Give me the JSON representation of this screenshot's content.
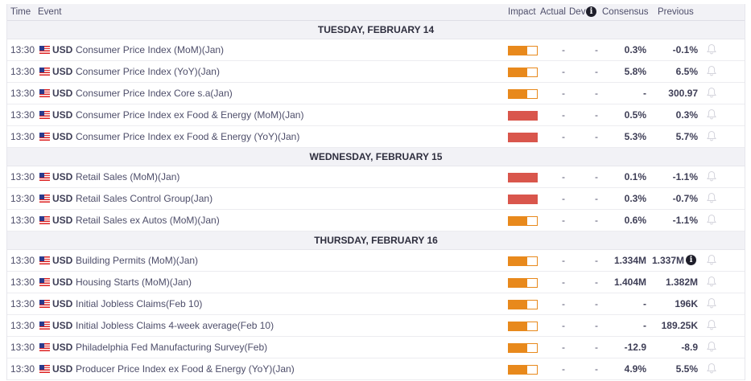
{
  "header": {
    "time": "Time",
    "event": "Event",
    "impact": "Impact",
    "actual": "Actual",
    "dev": "Dev",
    "dev_info_icon": "info-icon",
    "consensus": "Consensus",
    "previous": "Previous"
  },
  "colors": {
    "medium_impact": "#e8891c",
    "high_impact": "#d9564c"
  },
  "groups": [
    {
      "date": "TUESDAY, FEBRUARY 14",
      "rows": [
        {
          "time": "13:30",
          "currency": "USD",
          "event": "Consumer Price Index (MoM)(Jan)",
          "impact": "medium",
          "actual": "-",
          "dev": "-",
          "consensus": "0.3%",
          "previous": "-0.1%"
        },
        {
          "time": "13:30",
          "currency": "USD",
          "event": "Consumer Price Index (YoY)(Jan)",
          "impact": "medium",
          "actual": "-",
          "dev": "-",
          "consensus": "5.8%",
          "previous": "6.5%"
        },
        {
          "time": "13:30",
          "currency": "USD",
          "event": "Consumer Price Index Core s.a(Jan)",
          "impact": "medium",
          "actual": "-",
          "dev": "-",
          "consensus": "-",
          "previous": "300.97"
        },
        {
          "time": "13:30",
          "currency": "USD",
          "event": "Consumer Price Index ex Food & Energy (MoM)(Jan)",
          "impact": "high",
          "actual": "-",
          "dev": "-",
          "consensus": "0.5%",
          "previous": "0.3%"
        },
        {
          "time": "13:30",
          "currency": "USD",
          "event": "Consumer Price Index ex Food & Energy (YoY)(Jan)",
          "impact": "high",
          "actual": "-",
          "dev": "-",
          "consensus": "5.3%",
          "previous": "5.7%"
        }
      ]
    },
    {
      "date": "WEDNESDAY, FEBRUARY 15",
      "rows": [
        {
          "time": "13:30",
          "currency": "USD",
          "event": "Retail Sales (MoM)(Jan)",
          "impact": "high",
          "actual": "-",
          "dev": "-",
          "consensus": "0.1%",
          "previous": "-1.1%"
        },
        {
          "time": "13:30",
          "currency": "USD",
          "event": "Retail Sales Control Group(Jan)",
          "impact": "high",
          "actual": "-",
          "dev": "-",
          "consensus": "0.3%",
          "previous": "-0.7%"
        },
        {
          "time": "13:30",
          "currency": "USD",
          "event": "Retail Sales ex Autos (MoM)(Jan)",
          "impact": "medium",
          "actual": "-",
          "dev": "-",
          "consensus": "0.6%",
          "previous": "-1.1%"
        }
      ]
    },
    {
      "date": "THURSDAY, FEBRUARY 16",
      "rows": [
        {
          "time": "13:30",
          "currency": "USD",
          "event": "Building Permits (MoM)(Jan)",
          "impact": "medium",
          "actual": "-",
          "dev": "-",
          "consensus": "1.334M",
          "previous": "1.337M",
          "previous_info": true
        },
        {
          "time": "13:30",
          "currency": "USD",
          "event": "Housing Starts (MoM)(Jan)",
          "impact": "medium",
          "actual": "-",
          "dev": "-",
          "consensus": "1.404M",
          "previous": "1.382M"
        },
        {
          "time": "13:30",
          "currency": "USD",
          "event": "Initial Jobless Claims(Feb 10)",
          "impact": "medium",
          "actual": "-",
          "dev": "-",
          "consensus": "-",
          "previous": "196K"
        },
        {
          "time": "13:30",
          "currency": "USD",
          "event": "Initial Jobless Claims 4-week average(Feb 10)",
          "impact": "medium",
          "actual": "-",
          "dev": "-",
          "consensus": "-",
          "previous": "189.25K"
        },
        {
          "time": "13:30",
          "currency": "USD",
          "event": "Philadelphia Fed Manufacturing Survey(Feb)",
          "impact": "medium",
          "actual": "-",
          "dev": "-",
          "consensus": "-12.9",
          "previous": "-8.9"
        },
        {
          "time": "13:30",
          "currency": "USD",
          "event": "Producer Price Index ex Food & Energy (YoY)(Jan)",
          "impact": "medium",
          "actual": "-",
          "dev": "-",
          "consensus": "4.9%",
          "previous": "5.5%"
        }
      ]
    }
  ]
}
